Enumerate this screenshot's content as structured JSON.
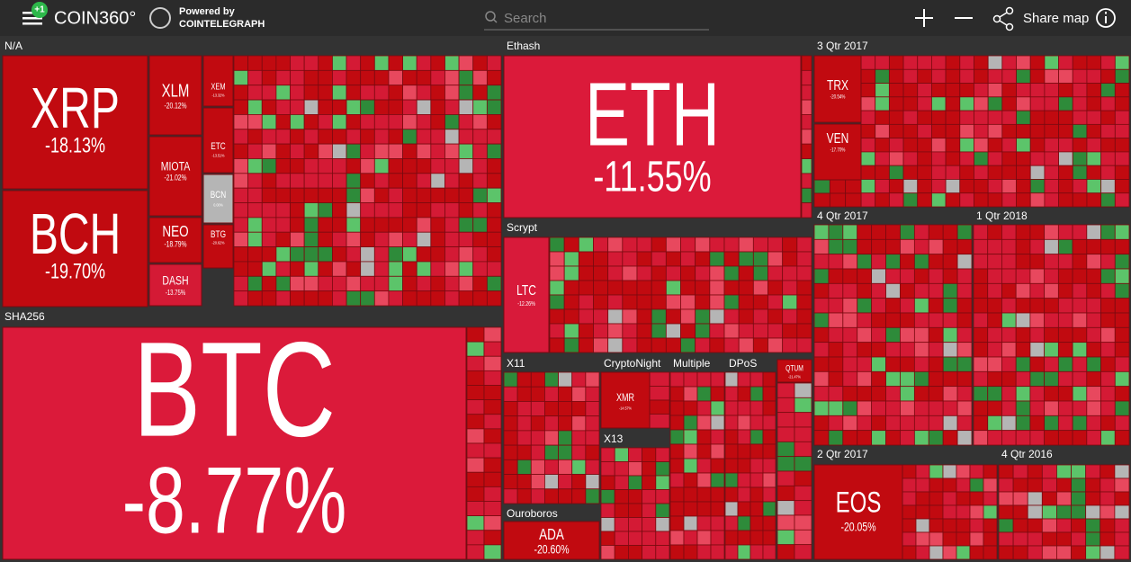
{
  "header": {
    "badge": "+1",
    "logo": "COIN360°",
    "powered_by": "Powered by",
    "partner": "COINTELEGRAPH",
    "search_placeholder": "Search",
    "share": "Share map"
  },
  "groups": [
    {
      "label": "N/A"
    },
    {
      "label": "SHA256"
    },
    {
      "label": "Ethash"
    },
    {
      "label": "Scrypt"
    },
    {
      "label": "X11"
    },
    {
      "label": "CryptoNight"
    },
    {
      "label": "Multiple"
    },
    {
      "label": "DPoS"
    },
    {
      "label": "X13"
    },
    {
      "label": "Ouroboros"
    },
    {
      "label": "3 Qtr 2017"
    },
    {
      "label": "4 Qtr 2017"
    },
    {
      "label": "1 Qtr 2018"
    },
    {
      "label": "2 Qtr 2017"
    },
    {
      "label": "4 Qtr 2016"
    }
  ],
  "tiles": [
    {
      "symbol": "XRP",
      "change": "-18.13%",
      "color": "#c10a10"
    },
    {
      "symbol": "BCH",
      "change": "-19.70%",
      "color": "#c10a10"
    },
    {
      "symbol": "XLM",
      "change": "-20.12%",
      "color": "#c10a10"
    },
    {
      "symbol": "MIOTA",
      "change": "-21.02%",
      "color": "#c10a10"
    },
    {
      "symbol": "NEO",
      "change": "-18.79%",
      "color": "#c10a10"
    },
    {
      "symbol": "DASH",
      "change": "-13.75%",
      "color": "#d41a35"
    },
    {
      "symbol": "XEM",
      "change": "-13.32%",
      "color": "#c10a10"
    },
    {
      "symbol": "ETC",
      "change": "-13.51%",
      "color": "#c10a10"
    },
    {
      "symbol": "BCN",
      "change": "0.00%",
      "color": "#b5b5b5"
    },
    {
      "symbol": "BTG",
      "change": "-20.62%",
      "color": "#c10a10"
    },
    {
      "symbol": "BTC",
      "change": "-8.77%",
      "color": "#db1a3a"
    },
    {
      "symbol": "ETH",
      "change": "-11.55%",
      "color": "#db1a3a"
    },
    {
      "symbol": "LTC",
      "change": "-12.26%",
      "color": "#d81a3a"
    },
    {
      "symbol": "XMR",
      "change": "-14.57%",
      "color": "#c10a10"
    },
    {
      "symbol": "QTUM",
      "change": "-21.47%",
      "color": "#c10a10"
    },
    {
      "symbol": "ADA",
      "change": "-20.60%",
      "color": "#c10a10"
    },
    {
      "symbol": "TRX",
      "change": "-20.54%",
      "color": "#c10a10"
    },
    {
      "symbol": "VEN",
      "change": "-17.70%",
      "color": "#c10a10"
    },
    {
      "symbol": "EOS",
      "change": "-20.05%",
      "color": "#c10a10"
    }
  ]
}
